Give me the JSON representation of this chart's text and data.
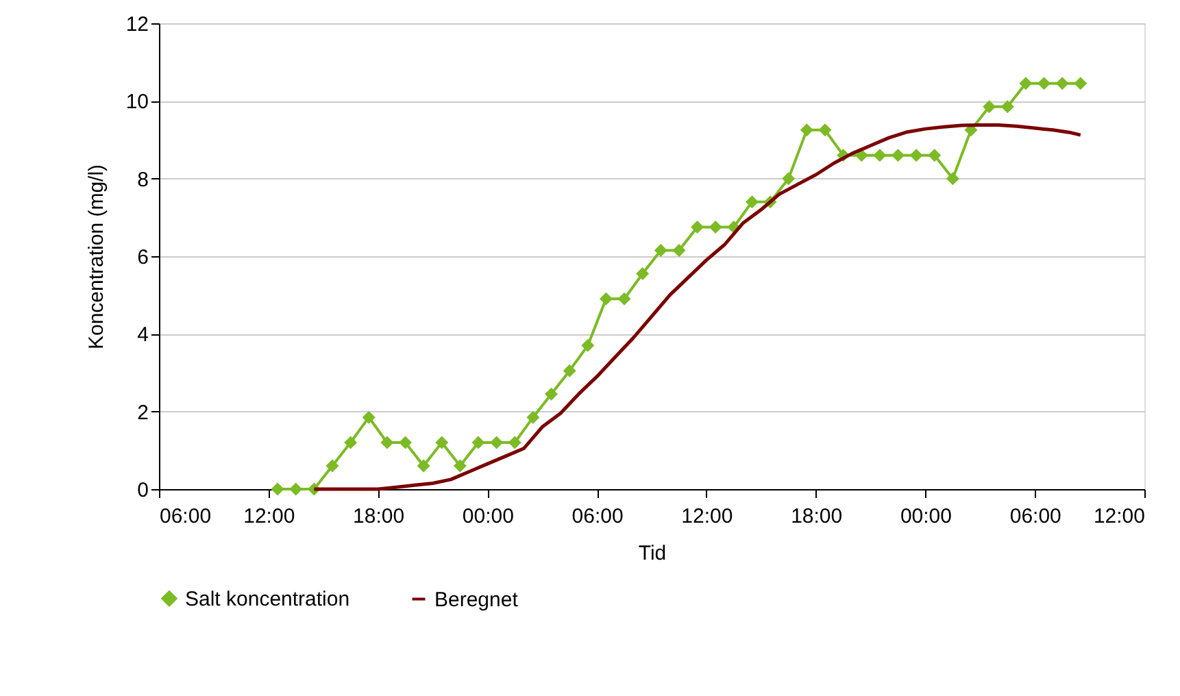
{
  "chart_data": {
    "type": "line",
    "xlabel": "Tid",
    "ylabel": "Koncentration (mg/l)",
    "xlim": [
      "2000-01-01T06:00",
      "2000-01-03T12:00"
    ],
    "xticks": [
      {
        "value": "2000-01-01T06:00",
        "label": "06:00"
      },
      {
        "value": "2000-01-01T12:00",
        "label": "12:00"
      },
      {
        "value": "2000-01-01T18:00",
        "label": "18:00"
      },
      {
        "value": "2000-01-02T00:00",
        "label": "00:00"
      },
      {
        "value": "2000-01-02T06:00",
        "label": "06:00"
      },
      {
        "value": "2000-01-02T12:00",
        "label": "12:00"
      },
      {
        "value": "2000-01-02T18:00",
        "label": "18:00"
      },
      {
        "value": "2000-01-03T00:00",
        "label": "00:00"
      },
      {
        "value": "2000-01-03T06:00",
        "label": "06:00"
      },
      {
        "value": "2000-01-03T12:00",
        "label": "12:00"
      }
    ],
    "ylim": [
      0,
      12
    ],
    "yticks": [
      0,
      2,
      4,
      6,
      8,
      10,
      12
    ],
    "grid": "y",
    "legend": "bottom",
    "series": [
      {
        "name": "Salt koncentration",
        "color": "#7cbb25",
        "marker": "diamond",
        "x": [
          "2000-01-01T12:30",
          "2000-01-01T13:30",
          "2000-01-01T14:30",
          "2000-01-01T15:30",
          "2000-01-01T16:30",
          "2000-01-01T17:30",
          "2000-01-01T18:30",
          "2000-01-01T19:30",
          "2000-01-01T20:30",
          "2000-01-01T21:30",
          "2000-01-01T22:30",
          "2000-01-01T23:30",
          "2000-01-02T00:30",
          "2000-01-02T01:30",
          "2000-01-02T02:30",
          "2000-01-02T03:30",
          "2000-01-02T04:30",
          "2000-01-02T05:30",
          "2000-01-02T06:30",
          "2000-01-02T07:30",
          "2000-01-02T08:30",
          "2000-01-02T09:30",
          "2000-01-02T10:30",
          "2000-01-02T11:30",
          "2000-01-02T12:30",
          "2000-01-02T13:30",
          "2000-01-02T14:30",
          "2000-01-02T15:30",
          "2000-01-02T16:30",
          "2000-01-02T17:30",
          "2000-01-02T18:30",
          "2000-01-02T19:30",
          "2000-01-02T20:30",
          "2000-01-02T21:30",
          "2000-01-02T22:30",
          "2000-01-02T23:30",
          "2000-01-03T00:30",
          "2000-01-03T01:30",
          "2000-01-03T02:30",
          "2000-01-03T03:30",
          "2000-01-03T04:30",
          "2000-01-03T05:30",
          "2000-01-03T06:30",
          "2000-01-03T07:30",
          "2000-01-03T08:30"
        ],
        "values": [
          0,
          0,
          0,
          0.6,
          1.2,
          1.85,
          1.2,
          1.2,
          0.6,
          1.2,
          0.6,
          1.2,
          1.2,
          1.2,
          1.85,
          2.45,
          3.05,
          3.7,
          4.9,
          4.9,
          5.55,
          6.15,
          6.15,
          6.75,
          6.75,
          6.75,
          7.4,
          7.4,
          8.0,
          9.25,
          9.25,
          8.6,
          8.6,
          8.6,
          8.6,
          8.6,
          8.6,
          8.0,
          9.25,
          9.85,
          9.85,
          10.45,
          10.45,
          10.45,
          10.45
        ]
      },
      {
        "name": "Beregnet",
        "color": "#7a0000",
        "marker": "none",
        "x": [
          "2000-01-01T14:30",
          "2000-01-01T16:00",
          "2000-01-01T18:00",
          "2000-01-01T19:00",
          "2000-01-01T20:00",
          "2000-01-01T21:00",
          "2000-01-01T22:00",
          "2000-01-01T23:00",
          "2000-01-02T00:00",
          "2000-01-02T01:00",
          "2000-01-02T02:00",
          "2000-01-02T03:00",
          "2000-01-02T04:00",
          "2000-01-02T05:00",
          "2000-01-02T06:00",
          "2000-01-02T07:00",
          "2000-01-02T08:00",
          "2000-01-02T09:00",
          "2000-01-02T10:00",
          "2000-01-02T11:00",
          "2000-01-02T12:00",
          "2000-01-02T13:00",
          "2000-01-02T14:00",
          "2000-01-02T15:00",
          "2000-01-02T16:00",
          "2000-01-02T17:00",
          "2000-01-02T18:00",
          "2000-01-02T19:00",
          "2000-01-02T20:00",
          "2000-01-02T21:00",
          "2000-01-02T22:00",
          "2000-01-02T23:00",
          "2000-01-03T00:00",
          "2000-01-03T01:00",
          "2000-01-03T02:00",
          "2000-01-03T03:00",
          "2000-01-03T04:00",
          "2000-01-03T05:00",
          "2000-01-03T06:00",
          "2000-01-03T07:00",
          "2000-01-03T08:00",
          "2000-01-03T08:30"
        ],
        "values": [
          0,
          0,
          0,
          0.05,
          0.1,
          0.15,
          0.25,
          0.45,
          0.65,
          0.85,
          1.05,
          1.6,
          1.95,
          2.45,
          2.9,
          3.4,
          3.9,
          4.45,
          5.0,
          5.45,
          5.9,
          6.3,
          6.85,
          7.2,
          7.6,
          7.85,
          8.1,
          8.4,
          8.65,
          8.85,
          9.05,
          9.2,
          9.28,
          9.33,
          9.37,
          9.38,
          9.38,
          9.35,
          9.3,
          9.25,
          9.18,
          9.12
        ]
      }
    ]
  }
}
